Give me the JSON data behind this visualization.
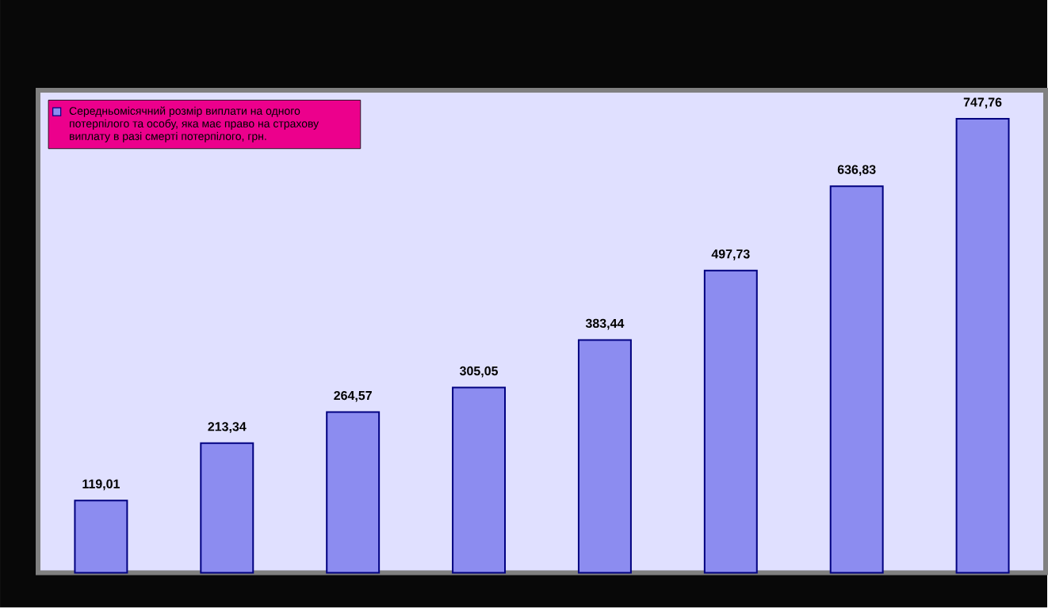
{
  "chart_data": {
    "type": "bar",
    "categories": [
      null,
      null,
      null,
      null,
      null,
      null,
      null,
      null
    ],
    "series": [
      {
        "name": "Середньомісячний розмір виплати на одного потерпілого та особу, яка має право на страхову виплату в разі смерті потерпілого, грн.",
        "color": "#8c8cf0",
        "values": [
          119.01,
          213.34,
          264.57,
          305.05,
          383.44,
          497.73,
          636.83,
          747.76
        ],
        "value_labels": [
          "119,01",
          "213,34",
          "264,57",
          "305,05",
          "383,44",
          "497,73",
          "636,83",
          "747,76"
        ]
      }
    ],
    "ylim": [
      0,
      795
    ],
    "grid": false,
    "legend": "top left"
  }
}
